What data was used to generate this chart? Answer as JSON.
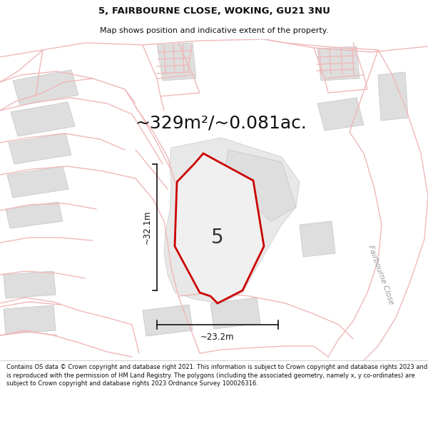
{
  "title_line1": "5, FAIRBOURNE CLOSE, WOKING, GU21 3NU",
  "title_line2": "Map shows position and indicative extent of the property.",
  "area_text": "~329m²/~0.081ac.",
  "label_number": "5",
  "dim_vertical": "~32.1m",
  "dim_horizontal": "~23.2m",
  "road_label": "Fairbourne Close",
  "footer_text": "Contains OS data © Crown copyright and database right 2021. This information is subject to Crown copyright and database rights 2023 and is reproduced with the permission of HM Land Registry. The polygons (including the associated geometry, namely x, y co-ordinates) are subject to Crown copyright and database rights 2023 Ordnance Survey 100026316.",
  "map_bg": "#f7f3f3",
  "property_fill": "#efefef",
  "property_outline": "#cc0000",
  "building_fill": "#dedede",
  "building_stroke": "#c8c8c8",
  "road_color": "#f0b8b8",
  "road_lw": 1.0,
  "dim_line_color": "#111111",
  "text_color": "#111111",
  "footer_bg": "#ffffff",
  "title_fontsize": 9.5,
  "subtitle_fontsize": 8.0,
  "area_fontsize": 18,
  "label_fontsize": 20,
  "dim_fontsize": 8.5,
  "footer_fontsize": 6.0,
  "figsize": [
    6.0,
    6.25
  ],
  "dpi": 100
}
